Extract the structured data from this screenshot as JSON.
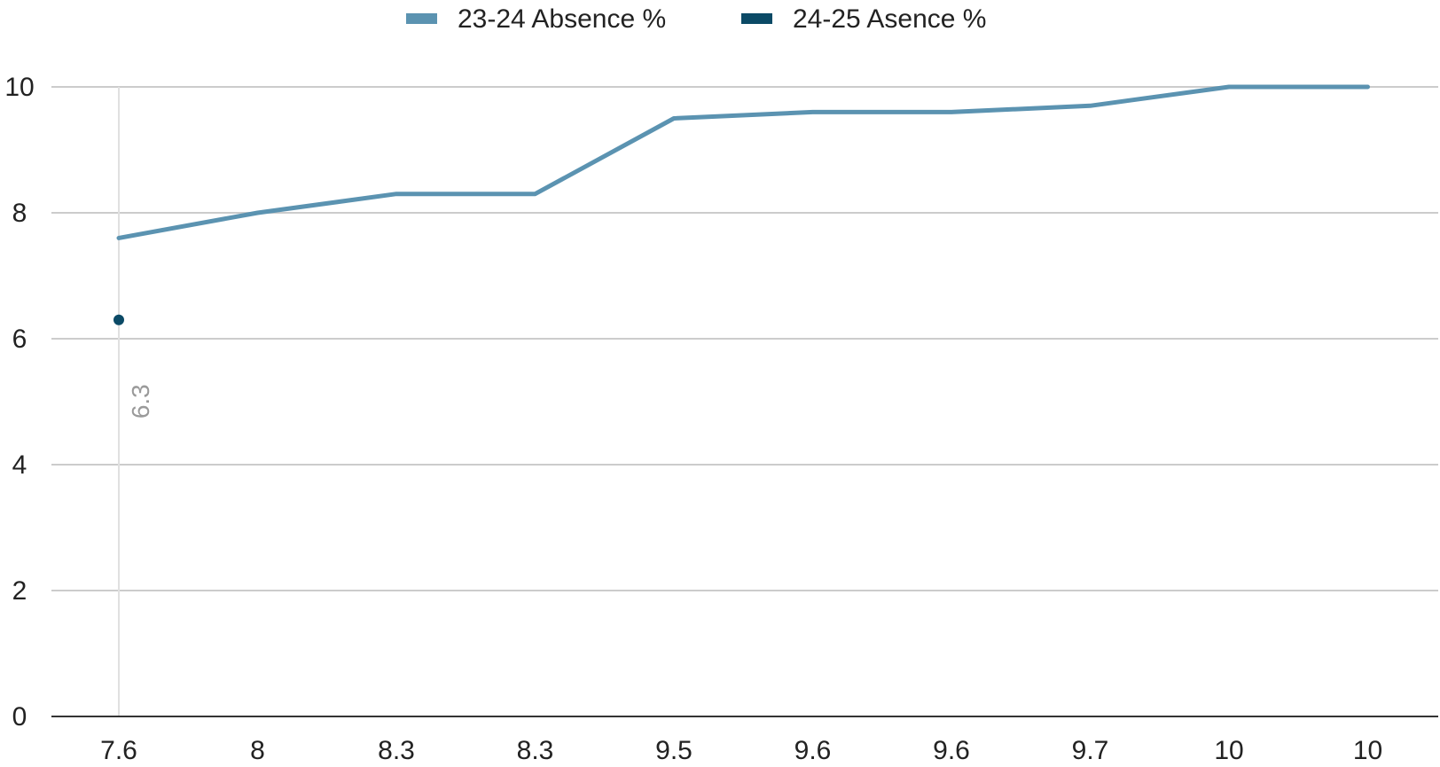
{
  "chart_data": {
    "type": "line",
    "title": "",
    "xlabel": "",
    "ylabel": "",
    "categories": [
      "7.6",
      "8",
      "8.3",
      "8.3",
      "9.5",
      "9.6",
      "9.6",
      "9.7",
      "10",
      "10"
    ],
    "series": [
      {
        "name": "23-24 Absence %",
        "color": "#5b93b1",
        "style": "line",
        "values": [
          7.6,
          8.0,
          8.3,
          8.3,
          9.5,
          9.6,
          9.6,
          9.7,
          10.0,
          10.0
        ]
      },
      {
        "name": "24-25 Asence %",
        "color": "#0b4a66",
        "style": "point",
        "values": [
          6.3,
          null,
          null,
          null,
          null,
          null,
          null,
          null,
          null,
          null
        ],
        "data_labels": [
          "6.3",
          null,
          null,
          null,
          null,
          null,
          null,
          null,
          null,
          null
        ]
      }
    ],
    "y_ticks": [
      "0",
      "2",
      "4",
      "6",
      "8",
      "10"
    ],
    "ylim": [
      0,
      10
    ],
    "grid": true,
    "legend_position": "top-center",
    "colors": {
      "grid": "#cccccc",
      "axis": "#333333",
      "focus_line": "#e0e0e0"
    }
  }
}
